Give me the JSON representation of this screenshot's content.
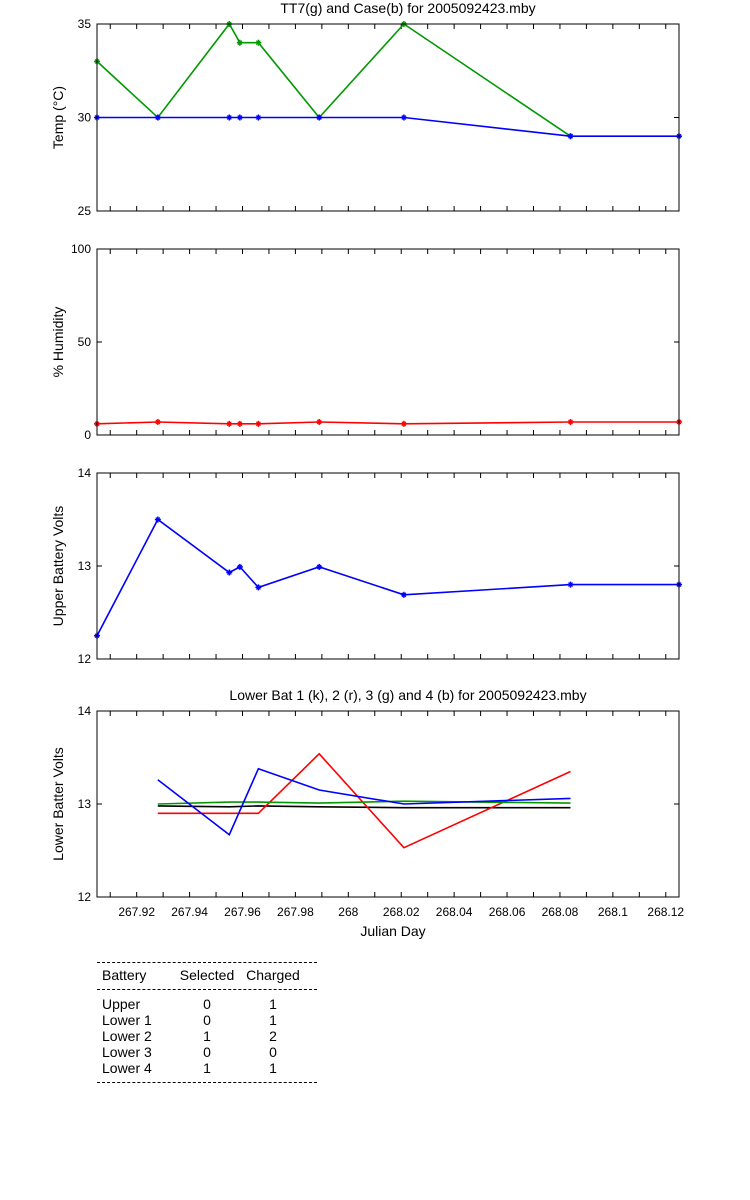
{
  "chart_data": [
    {
      "type": "line",
      "title": "TT7(g) and Case(b) for 2005092423.mby",
      "ylabel": "Temp  (°C)",
      "xlim": [
        267.905,
        268.125
      ],
      "ylim": [
        25,
        35
      ],
      "yticks": [
        25,
        30,
        35
      ],
      "series": [
        {
          "color": "#009900",
          "markers": true,
          "x": [
            267.905,
            267.928,
            267.955,
            267.959,
            267.966,
            267.989,
            268.021,
            268.084
          ],
          "y": [
            33,
            30,
            35,
            34,
            34,
            30,
            35,
            29
          ]
        },
        {
          "color": "#0000ff",
          "markers": true,
          "x": [
            267.905,
            267.928,
            267.955,
            267.959,
            267.966,
            267.989,
            268.021,
            268.084,
            268.125
          ],
          "y": [
            30,
            30,
            30,
            30,
            30,
            30,
            30,
            29,
            29
          ]
        }
      ]
    },
    {
      "type": "line",
      "title": "",
      "ylabel": "% Humidity",
      "xlim": [
        267.905,
        268.125
      ],
      "ylim": [
        0,
        100
      ],
      "yticks": [
        0,
        50,
        100
      ],
      "series": [
        {
          "color": "#ff0000",
          "markers": true,
          "x": [
            267.905,
            267.928,
            267.955,
            267.959,
            267.966,
            267.989,
            268.021,
            268.084,
            268.125
          ],
          "y": [
            6,
            7,
            6,
            6,
            6,
            7,
            6,
            7,
            7
          ]
        }
      ]
    },
    {
      "type": "line",
      "title": "",
      "ylabel": "Upper Battery Volts",
      "xlim": [
        267.905,
        268.125
      ],
      "ylim": [
        12,
        14
      ],
      "yticks": [
        12,
        13,
        14
      ],
      "series": [
        {
          "color": "#0000ff",
          "markers": true,
          "x": [
            267.905,
            267.928,
            267.955,
            267.959,
            267.966,
            267.989,
            268.021,
            268.084,
            268.125
          ],
          "y": [
            12.25,
            13.5,
            12.93,
            12.99,
            12.77,
            12.99,
            12.69,
            12.8,
            12.8
          ]
        }
      ]
    },
    {
      "type": "line",
      "title": "Lower Bat 1 (k), 2 (r), 3 (g) and 4 (b) for 2005092423.mby",
      "ylabel": "Lower Batter Volts",
      "xlabel": "Julian Day",
      "xlim": [
        267.905,
        268.125
      ],
      "ylim": [
        12,
        14
      ],
      "yticks": [
        12,
        13,
        14
      ],
      "xticks": [
        "267.92",
        "267.94",
        "267.96",
        "267.98",
        "268",
        "268.02",
        "268.04",
        "268.06",
        "268.08",
        "268.1",
        "268.12"
      ],
      "series": [
        {
          "color": "#000000",
          "markers": false,
          "x": [
            267.928,
            267.955,
            267.966,
            267.989,
            268.021,
            268.084
          ],
          "y": [
            12.98,
            12.97,
            12.98,
            12.97,
            12.96,
            12.96
          ]
        },
        {
          "color": "#ff0000",
          "markers": false,
          "x": [
            267.928,
            267.955,
            267.966,
            267.989,
            268.021,
            268.084
          ],
          "y": [
            12.9,
            12.9,
            12.9,
            13.54,
            12.53,
            13.35
          ]
        },
        {
          "color": "#009900",
          "markers": false,
          "x": [
            267.928,
            267.955,
            267.966,
            267.989,
            268.021,
            268.084
          ],
          "y": [
            13.0,
            13.02,
            13.02,
            13.01,
            13.03,
            13.01
          ]
        },
        {
          "color": "#0000ff",
          "markers": false,
          "x": [
            267.928,
            267.955,
            267.966,
            267.989,
            268.021,
            268.084
          ],
          "y": [
            13.26,
            12.67,
            13.38,
            13.15,
            13.0,
            13.06
          ]
        }
      ]
    }
  ],
  "battery_table": {
    "headers": [
      "Battery",
      "Selected",
      "Charged"
    ],
    "rows": [
      [
        "Upper",
        "0",
        "1"
      ],
      [
        "Lower 1",
        "0",
        "1"
      ],
      [
        "Lower 2",
        "1",
        "2"
      ],
      [
        "Lower 3",
        "0",
        "0"
      ],
      [
        "Lower 4",
        "1",
        "1"
      ]
    ]
  }
}
